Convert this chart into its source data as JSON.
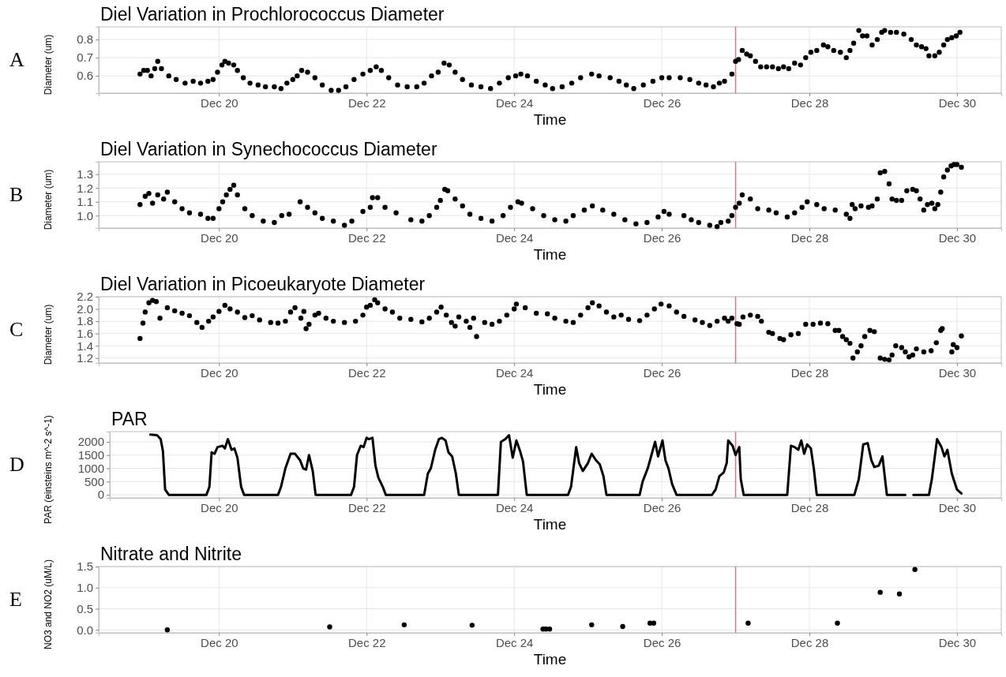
{
  "chart_data": [
    {
      "type": "scatter",
      "title": "Diel Variation in Prochlorococcus Diameter",
      "xlabel": "Time",
      "ylabel": "Diameter (um)",
      "annotations": [
        "A"
      ],
      "marker": "circle",
      "grid": true,
      "xlim": [
        "--12-18T08:53",
        "--12-30T14:24"
      ],
      "xticks": [
        {
          "value": "--12-20",
          "label": "Dec 20"
        },
        {
          "value": "--12-22",
          "label": "Dec 22"
        },
        {
          "value": "--12-24",
          "label": "Dec 24"
        },
        {
          "value": "--12-26",
          "label": "Dec 26"
        },
        {
          "value": "--12-28",
          "label": "Dec 28"
        },
        {
          "value": "--12-30",
          "label": "Dec 30"
        }
      ],
      "ylim": [
        0.505,
        0.87
      ],
      "yticks": [
        0.6,
        0.7,
        0.8
      ],
      "ref_lines": [
        {
          "axis": "x",
          "value": "--12-27",
          "color": "#f07070"
        }
      ],
      "series": [
        {
          "color": "#000000",
          "x": [
            "--12-18T22:19",
            "--12-18T23:31",
            "--12-19T00:43",
            "--12-19T01:55",
            "--12-19T03:07",
            "--12-19T04:05",
            "--12-19T05:17",
            "--12-19T07:41",
            "--12-19T10:05",
            "--12-19T12:58",
            "--12-19T15:36",
            "--12-19T18:00",
            "--12-19T20:24",
            "--12-19T22:05",
            "--12-19T23:31",
            "--12-20T00:58",
            "--12-20T01:55",
            "--12-20T03:07",
            "--12-20T04:48",
            "--12-20T06:00",
            "--12-20T07:55",
            "--12-20T10:05",
            "--12-20T12:43",
            "--12-20T15:07",
            "--12-20T18:00",
            "--12-20T20:10",
            "--12-20T22:05",
            "--12-21T00:00",
            "--12-21T01:26",
            "--12-21T02:53",
            "--12-21T04:48",
            "--12-21T07:12",
            "--12-21T09:36",
            "--12-21T12:29",
            "--12-21T14:53",
            "--12-21T17:17",
            "--12-21T19:55",
            "--12-21T22:48",
            "--12-22T01:12",
            "--12-22T03:07",
            "--12-22T04:48",
            "--12-22T07:12",
            "--12-22T10:05",
            "--12-22T13:12",
            "--12-22T16:19",
            "--12-22T18:43",
            "--12-22T21:07",
            "--12-22T23:17",
            "--12-23T01:12",
            "--12-23T02:53",
            "--12-23T04:48",
            "--12-23T07:12",
            "--12-23T10:05",
            "--12-23T13:12",
            "--12-23T16:19",
            "--12-23T19:12",
            "--12-23T22:05",
            "--12-24T00:29",
            "--12-24T02:10",
            "--12-24T04:19",
            "--12-24T07:12",
            "--12-24T10:05",
            "--12-24T12:29",
            "--12-24T15:36",
            "--12-24T18:43",
            "--12-24T21:36",
            "--12-25T01:12",
            "--12-25T03:36",
            "--12-25T07:12",
            "--12-25T10:05",
            "--12-25T12:29",
            "--12-25T14:53",
            "--12-25T18:00",
            "--12-25T21:07",
            "--12-26T00:00",
            "--12-26T02:24",
            "--12-26T06:00",
            "--12-26T09:07",
            "--12-26T12:00",
            "--12-26T14:24",
            "--12-26T16:48",
            "--12-26T18:43",
            "--12-26T20:24",
            "--12-26T22:48",
            "--12-27T00:00",
            "--12-27T00:58",
            "--12-27T02:10",
            "--12-27T03:36",
            "--12-27T04:48",
            "--12-27T06:29",
            "--12-27T08:10",
            "--12-27T10:05",
            "--12-27T12:00",
            "--12-27T13:55",
            "--12-27T15:36",
            "--12-27T17:17",
            "--12-27T19:12",
            "--12-27T21:07",
            "--12-27T22:48",
            "--12-28T00:29",
            "--12-28T02:24",
            "--12-28T04:34",
            "--12-28T06:00",
            "--12-28T07:55",
            "--12-28T10:05",
            "--12-28T12:00",
            "--12-28T13:12",
            "--12-28T14:24",
            "--12-28T16:05",
            "--12-28T17:17",
            "--12-28T18:43",
            "--12-28T20:24",
            "--12-28T22:05",
            "--12-28T23:31",
            "--12-29T00:29",
            "--12-29T02:24",
            "--12-29T04:19",
            "--12-29T06:43",
            "--12-29T09:07",
            "--12-29T10:48",
            "--12-29T12:29",
            "--12-29T13:55",
            "--12-29T14:53",
            "--12-29T16:48",
            "--12-29T18:14",
            "--12-29T19:41",
            "--12-29T20:53",
            "--12-29T22:19",
            "--12-29T23:46",
            "--12-30T00:58"
          ],
          "values": [
            0.61,
            0.63,
            0.63,
            0.6,
            0.64,
            0.68,
            0.64,
            0.6,
            0.58,
            0.56,
            0.57,
            0.56,
            0.57,
            0.58,
            0.62,
            0.66,
            0.68,
            0.67,
            0.66,
            0.63,
            0.59,
            0.56,
            0.55,
            0.54,
            0.54,
            0.53,
            0.56,
            0.58,
            0.6,
            0.63,
            0.62,
            0.59,
            0.55,
            0.52,
            0.52,
            0.54,
            0.58,
            0.61,
            0.63,
            0.65,
            0.63,
            0.59,
            0.55,
            0.54,
            0.54,
            0.56,
            0.6,
            0.62,
            0.67,
            0.66,
            0.62,
            0.58,
            0.55,
            0.54,
            0.53,
            0.56,
            0.59,
            0.6,
            0.61,
            0.6,
            0.57,
            0.55,
            0.53,
            0.54,
            0.56,
            0.59,
            0.61,
            0.6,
            0.59,
            0.57,
            0.55,
            0.53,
            0.55,
            0.57,
            0.59,
            0.59,
            0.59,
            0.58,
            0.56,
            0.55,
            0.54,
            0.56,
            0.57,
            0.61,
            0.68,
            0.69,
            0.74,
            0.72,
            0.71,
            0.68,
            0.65,
            0.65,
            0.65,
            0.64,
            0.65,
            0.64,
            0.67,
            0.66,
            0.7,
            0.73,
            0.74,
            0.77,
            0.76,
            0.74,
            0.73,
            0.7,
            0.74,
            0.78,
            0.85,
            0.82,
            0.82,
            0.77,
            0.8,
            0.84,
            0.85,
            0.84,
            0.84,
            0.83,
            0.8,
            0.77,
            0.76,
            0.75,
            0.71,
            0.71,
            0.73,
            0.77,
            0.8,
            0.81,
            0.82,
            0.84
          ]
        }
      ]
    },
    {
      "type": "scatter",
      "title": "Diel Variation in Synechococcus Diameter",
      "xlabel": "Time",
      "ylabel": "Diameter (um)",
      "annotations": [
        "B"
      ],
      "marker": "circle",
      "grid": true,
      "xlim": [
        "--12-18T08:53",
        "--12-30T14:24"
      ],
      "xticks": [
        {
          "value": "--12-20",
          "label": "Dec 20"
        },
        {
          "value": "--12-22",
          "label": "Dec 22"
        },
        {
          "value": "--12-24",
          "label": "Dec 24"
        },
        {
          "value": "--12-26",
          "label": "Dec 26"
        },
        {
          "value": "--12-28",
          "label": "Dec 28"
        },
        {
          "value": "--12-30",
          "label": "Dec 30"
        }
      ],
      "ylim": [
        0.91,
        1.39
      ],
      "yticks": [
        {
          "value": 1,
          "label": "1.0"
        },
        1.1,
        1.2,
        1.3
      ],
      "ref_lines": [
        {
          "axis": "x",
          "value": "--12-27",
          "color": "#f07070"
        }
      ],
      "series": [
        {
          "color": "#000000",
          "x": [
            "--12-18T22:19",
            "--12-19T00:00",
            "--12-19T01:12",
            "--12-19T02:24",
            "--12-19T04:05",
            "--12-19T06:00",
            "--12-19T07:12",
            "--12-19T09:36",
            "--12-19T12:00",
            "--12-19T14:24",
            "--12-19T18:00",
            "--12-19T20:24",
            "--12-19T22:05",
            "--12-20T00:00",
            "--12-20T01:12",
            "--12-20T02:24",
            "--12-20T03:36",
            "--12-20T04:48",
            "--12-20T06:00",
            "--12-20T08:24",
            "--12-20T10:48",
            "--12-20T14:24",
            "--12-20T18:00",
            "--12-20T20:24",
            "--12-20T22:48",
            "--12-21T02:24",
            "--12-21T04:48",
            "--12-21T07:12",
            "--12-21T09:36",
            "--12-21T13:12",
            "--12-21T16:48",
            "--12-21T19:12",
            "--12-21T22:48",
            "--12-22T01:12",
            "--12-22T01:55",
            "--12-22T03:36",
            "--12-22T06:00",
            "--12-22T09:36",
            "--12-22T14:24",
            "--12-22T18:00",
            "--12-22T20:24",
            "--12-22T22:48",
            "--12-23T00:00",
            "--12-23T01:26",
            "--12-23T02:24",
            "--12-23T04:48",
            "--12-23T07:12",
            "--12-23T09:36",
            "--12-23T13:12",
            "--12-23T16:48",
            "--12-23T20:24",
            "--12-23T22:48",
            "--12-24T01:12",
            "--12-24T02:24",
            "--12-24T06:00",
            "--12-24T09:36",
            "--12-24T13:12",
            "--12-24T16:48",
            "--12-24T19:12",
            "--12-24T22:48",
            "--12-25T01:26",
            "--12-25T04:48",
            "--12-25T08:24",
            "--12-25T12:00",
            "--12-25T15:36",
            "--12-25T19:12",
            "--12-25T22:48",
            "--12-26T00:43",
            "--12-26T02:24",
            "--12-26T07:12",
            "--12-26T09:36",
            "--12-26T12:00",
            "--12-26T15:36",
            "--12-26T18:00",
            "--12-26T19:12",
            "--12-26T21:36",
            "--12-26T22:48",
            "--12-27T00:00",
            "--12-27T01:12",
            "--12-27T02:10",
            "--12-27T04:48",
            "--12-27T07:12",
            "--12-27T10:48",
            "--12-27T13:12",
            "--12-27T16:48",
            "--12-27T19:12",
            "--12-27T21:36",
            "--12-27T23:17",
            "--12-28T02:24",
            "--12-28T04:48",
            "--12-28T08:24",
            "--12-28T12:00",
            "--12-28T13:12",
            "--12-28T13:55",
            "--12-28T14:53",
            "--12-28T16:48",
            "--12-28T19:12",
            "--12-28T20:24",
            "--12-28T22:05",
            "--12-28T23:02",
            "--12-29T00:29",
            "--12-29T01:55",
            "--12-29T02:53",
            "--12-29T04:19",
            "--12-29T06:00",
            "--12-29T07:41",
            "--12-29T09:36",
            "--12-29T10:48",
            "--12-29T12:00",
            "--12-29T13:12",
            "--12-29T14:24",
            "--12-29T15:50",
            "--12-29T16:48",
            "--12-29T17:46",
            "--12-29T18:43",
            "--12-29T19:41",
            "--12-29T20:53",
            "--12-29T22:05",
            "--12-29T23:02",
            "--12-30T00:00",
            "--12-30T01:26"
          ],
          "values": [
            1.08,
            1.14,
            1.16,
            1.09,
            1.15,
            1.12,
            1.17,
            1.1,
            1.05,
            1.02,
            1.01,
            0.98,
            0.98,
            1.05,
            1.1,
            1.15,
            1.19,
            1.22,
            1.15,
            1.05,
            1.0,
            0.96,
            0.95,
            1.0,
            1.01,
            1.1,
            1.06,
            1.02,
            0.98,
            0.96,
            0.93,
            0.96,
            1.03,
            1.06,
            1.13,
            1.13,
            1.06,
            1.02,
            0.97,
            0.96,
            1.0,
            1.06,
            1.11,
            1.19,
            1.18,
            1.12,
            1.07,
            1.01,
            0.98,
            0.96,
            1.0,
            1.06,
            1.1,
            1.09,
            1.05,
            1.0,
            0.97,
            0.96,
            1.0,
            1.04,
            1.07,
            1.04,
            1.01,
            0.97,
            0.94,
            0.95,
            0.99,
            1.03,
            1.01,
            1.0,
            0.97,
            0.95,
            0.93,
            0.92,
            0.95,
            0.96,
            1.0,
            1.06,
            1.09,
            1.15,
            1.12,
            1.05,
            1.04,
            1.02,
            0.99,
            1.02,
            1.06,
            1.1,
            1.08,
            1.05,
            1.04,
            1.01,
            0.98,
            1.08,
            1.05,
            1.07,
            1.06,
            1.07,
            1.12,
            1.31,
            1.32,
            1.23,
            1.12,
            1.11,
            1.11,
            1.18,
            1.19,
            1.18,
            1.12,
            1.04,
            1.08,
            1.09,
            1.05,
            1.08,
            1.17,
            1.28,
            1.33,
            1.36,
            1.37,
            1.37,
            1.35
          ]
        }
      ]
    },
    {
      "type": "scatter",
      "title": "Diel Variation in Picoeukaryote Diameter",
      "xlabel": "Time",
      "ylabel": "Diameter (um)",
      "annotations": [
        "C"
      ],
      "marker": "circle",
      "grid": true,
      "xlim": [
        "--12-18T08:53",
        "--12-30T14:24"
      ],
      "xticks": [
        {
          "value": "--12-20",
          "label": "Dec 20"
        },
        {
          "value": "--12-22",
          "label": "Dec 22"
        },
        {
          "value": "--12-24",
          "label": "Dec 24"
        },
        {
          "value": "--12-26",
          "label": "Dec 26"
        },
        {
          "value": "--12-28",
          "label": "Dec 28"
        },
        {
          "value": "--12-30",
          "label": "Dec 30"
        }
      ],
      "ylim": [
        1.12,
        2.2
      ],
      "yticks": [
        1.2,
        1.4,
        1.6,
        1.8,
        {
          "value": 2,
          "label": "2.0"
        },
        2.2
      ],
      "ref_lines": [
        {
          "axis": "x",
          "value": "--12-27",
          "color": "#f07070"
        }
      ],
      "series": [
        {
          "color": "#000000",
          "x": [
            "--12-18T22:19",
            "--12-18T23:17",
            "--12-19T00:00",
            "--12-19T01:12",
            "--12-19T02:24",
            "--12-19T03:36",
            "--12-19T04:48",
            "--12-19T07:12",
            "--12-19T09:36",
            "--12-19T12:00",
            "--12-19T14:24",
            "--12-19T16:48",
            "--12-19T18:29",
            "--12-19T20:38",
            "--12-19T22:05",
            "--12-20T00:00",
            "--12-20T01:55",
            "--12-20T03:36",
            "--12-20T06:00",
            "--12-20T08:24",
            "--12-20T10:48",
            "--12-20T13:12",
            "--12-20T16:48",
            "--12-20T19:12",
            "--12-20T21:36",
            "--12-20T23:17",
            "--12-21T00:43",
            "--12-21T02:38",
            "--12-21T03:36",
            "--12-21T04:19",
            "--12-21T05:17",
            "--12-21T07:12",
            "--12-21T08:24",
            "--12-21T10:48",
            "--12-21T13:12",
            "--12-21T16:48",
            "--12-21T20:24",
            "--12-21T22:48",
            "--12-22T00:00",
            "--12-22T01:12",
            "--12-22T02:38",
            "--12-22T03:36",
            "--12-22T06:00",
            "--12-22T08:24",
            "--12-22T10:48",
            "--12-22T14:24",
            "--12-22T18:00",
            "--12-22T20:24",
            "--12-22T22:48",
            "--12-23T00:14",
            "--12-23T01:55",
            "--12-23T03:36",
            "--12-23T04:48",
            "--12-23T06:00",
            "--12-23T08:24",
            "--12-23T09:36",
            "--12-23T10:48",
            "--12-23T11:46",
            "--12-23T14:24",
            "--12-23T16:48",
            "--12-23T19:12",
            "--12-23T21:36",
            "--12-24T00:00",
            "--12-24T00:43",
            "--12-24T03:36",
            "--12-24T07:12",
            "--12-24T10:48",
            "--12-24T13:12",
            "--12-24T16:48",
            "--12-24T19:12",
            "--12-24T21:36",
            "--12-25T00:00",
            "--12-25T01:26",
            "--12-25T03:36",
            "--12-25T06:00",
            "--12-25T08:24",
            "--12-25T10:48",
            "--12-25T13:12",
            "--12-25T16:48",
            "--12-25T19:12",
            "--12-25T21:36",
            "--12-25T23:46",
            "--12-26T02:24",
            "--12-26T04:48",
            "--12-26T07:12",
            "--12-26T10:48",
            "--12-26T13:12",
            "--12-26T15:36",
            "--12-26T18:00",
            "--12-26T20:24",
            "--12-26T21:36",
            "--12-26T22:48",
            "--12-27T00:29",
            "--12-27T01:12",
            "--12-27T02:24",
            "--12-27T04:48",
            "--12-27T07:12",
            "--12-27T08:24",
            "--12-27T10:48",
            "--12-27T12:00",
            "--12-27T14:24",
            "--12-27T15:36",
            "--12-27T18:00",
            "--12-27T20:24",
            "--12-27T22:48",
            "--12-28T01:12",
            "--12-28T03:36",
            "--12-28T06:00",
            "--12-28T08:24",
            "--12-28T09:36",
            "--12-28T10:48",
            "--12-28T12:00",
            "--12-28T13:12",
            "--12-28T14:10",
            "--12-28T15:36",
            "--12-28T16:48",
            "--12-28T18:00",
            "--12-28T19:41",
            "--12-28T21:07",
            "--12-28T23:02",
            "--12-29T00:29",
            "--12-29T01:55",
            "--12-29T02:53",
            "--12-29T04:05",
            "--12-29T06:00",
            "--12-29T07:12",
            "--12-29T08:24",
            "--12-29T09:36",
            "--12-29T10:48",
            "--12-29T13:12",
            "--12-29T15:36",
            "--12-29T17:17",
            "--12-29T18:43",
            "--12-29T19:12",
            "--12-29T22:19",
            "--12-29T22:48",
            "--12-30T00:00",
            "--12-30T01:26"
          ],
          "values": [
            1.52,
            1.77,
            1.95,
            2.1,
            2.14,
            2.12,
            1.85,
            2.02,
            1.97,
            1.93,
            1.89,
            1.78,
            1.7,
            1.8,
            1.87,
            1.96,
            2.06,
            2.0,
            1.95,
            1.86,
            1.89,
            1.82,
            1.78,
            1.77,
            1.8,
            1.95,
            2.02,
            1.85,
            1.96,
            1.68,
            1.75,
            1.9,
            1.93,
            1.85,
            1.8,
            1.78,
            1.8,
            1.9,
            2.03,
            2.06,
            2.15,
            2.1,
            2.0,
            1.95,
            1.85,
            1.83,
            1.79,
            1.85,
            1.95,
            2.03,
            1.9,
            1.78,
            1.72,
            1.87,
            1.8,
            1.7,
            1.85,
            1.55,
            1.78,
            1.75,
            1.8,
            1.9,
            2.0,
            2.08,
            2.02,
            1.93,
            1.92,
            1.85,
            1.8,
            1.78,
            1.9,
            2.02,
            2.1,
            2.05,
            1.95,
            1.87,
            1.9,
            1.83,
            1.81,
            1.9,
            2.0,
            2.08,
            2.05,
            1.95,
            1.88,
            1.82,
            1.78,
            1.73,
            1.8,
            1.85,
            1.8,
            1.85,
            1.76,
            1.75,
            1.87,
            1.9,
            1.88,
            1.8,
            1.62,
            1.6,
            1.52,
            1.5,
            1.58,
            1.6,
            1.75,
            1.75,
            1.77,
            1.76,
            1.65,
            1.65,
            1.55,
            1.5,
            1.44,
            1.2,
            1.3,
            1.4,
            1.55,
            1.65,
            1.63,
            1.2,
            1.18,
            1.17,
            1.25,
            1.4,
            1.37,
            1.3,
            1.22,
            1.25,
            1.35,
            1.3,
            1.32,
            1.45,
            1.65,
            1.68,
            1.3,
            1.42,
            1.37,
            1.56
          ]
        }
      ]
    },
    {
      "type": "line",
      "title": "PAR",
      "xlabel": "Time",
      "ylabel": "PAR (einsteins m^-2 s^-1)",
      "annotations": [
        "D"
      ],
      "line_style": "solid",
      "grid": true,
      "xlim": [
        "--12-18T12:29",
        "--12-30T14:24"
      ],
      "xticks": [
        {
          "value": "--12-20",
          "label": "Dec 20"
        },
        {
          "value": "--12-22",
          "label": "Dec 22"
        },
        {
          "value": "--12-24",
          "label": "Dec 24"
        },
        {
          "value": "--12-26",
          "label": "Dec 26"
        },
        {
          "value": "--12-28",
          "label": "Dec 28"
        },
        {
          "value": "--12-30",
          "label": "Dec 30"
        }
      ],
      "ylim": [
        -115,
        2385
      ],
      "yticks": [
        0,
        500,
        1000,
        1500,
        2000
      ],
      "ref_lines": [
        {
          "axis": "x",
          "value": "--12-27",
          "color": "#f07070"
        }
      ],
      "series": [
        {
          "color": "#000000",
          "x": [
            "--12-19T01:41",
            "--12-19T03:50",
            "--12-19T05:02",
            "--12-19T05:46",
            "--12-19T06:29",
            "--12-19T07:41",
            "--12-19T19:55",
            "--12-19T20:53",
            "--12-19T21:36",
            "--12-19T22:34",
            "--12-19T23:31",
            "--12-20T01:12",
            "--12-20T01:55",
            "--12-20T02:53",
            "--12-20T04:05",
            "--12-20T05:02",
            "--12-20T06:00",
            "--12-20T07:12",
            "--12-20T08:10",
            "--12-20T19:12",
            "--12-20T20:10",
            "--12-20T21:36",
            "--12-20T23:17",
            "--12-21T00:43",
            "--12-21T02:24",
            "--12-21T03:22",
            "--12-21T04:19",
            "--12-21T05:17",
            "--12-21T06:29",
            "--12-21T07:26",
            "--12-21T18:58",
            "--12-21T19:55",
            "--12-21T20:53",
            "--12-21T22:05",
            "--12-21T23:02",
            "--12-22T00:00",
            "--12-22T00:43",
            "--12-22T01:55",
            "--12-22T02:53",
            "--12-22T03:50",
            "--12-22T05:17",
            "--12-22T06:14",
            "--12-22T18:43",
            "--12-22T19:55",
            "--12-22T20:53",
            "--12-22T22:19",
            "--12-22T23:31",
            "--12-23T00:29",
            "--12-23T01:41",
            "--12-23T02:38",
            "--12-23T03:50",
            "--12-23T05:02",
            "--12-23T06:00",
            "--12-23T18:43",
            "--12-23T19:41",
            "--12-23T21:07",
            "--12-23T22:19",
            "--12-23T23:31",
            "--12-24T00:43",
            "--12-24T01:55",
            "--12-24T02:53",
            "--12-24T04:05",
            "--12-24T17:31",
            "--12-24T18:29",
            "--12-24T20:10",
            "--12-24T21:07",
            "--12-24T22:19",
            "--12-25T00:00",
            "--12-25T01:12",
            "--12-25T02:38",
            "--12-25T03:50",
            "--12-25T05:02",
            "--12-25T06:00",
            "--12-25T16:48",
            "--12-25T17:46",
            "--12-25T19:26",
            "--12-25T20:38",
            "--12-25T21:50",
            "--12-25T22:48",
            "--12-26T00:14",
            "--12-26T01:12",
            "--12-26T02:10",
            "--12-26T03:22",
            "--12-26T04:48",
            "--12-26T16:19",
            "--12-26T17:31",
            "--12-26T18:43",
            "--12-26T20:10",
            "--12-26T21:07",
            "--12-26T21:36",
            "--12-26T23:02",
            "--12-27T00:00",
            "--12-27T01:12",
            "--12-27T01:41",
            "--12-27T02:38",
            "--12-27T16:48",
            "--12-27T18:00",
            "--12-27T19:12",
            "--12-27T20:24",
            "--12-27T21:22",
            "--12-27T22:19",
            "--12-27T23:17",
            "--12-28T00:29",
            "--12-28T01:26",
            "--12-28T02:24",
            "--12-28T14:38",
            "--12-28T16:05",
            "--12-28T17:31",
            "--12-28T18:58",
            "--12-28T20:10",
            "--12-28T21:07",
            "--12-28T22:34",
            "--12-28T23:46",
            "--12-29T01:12",
            "--12-29T07:12",
            "--12-29T08:24",
            "--12-29T09:50",
            "--12-29T14:53",
            "--12-29T15:50",
            "--12-29T17:31",
            "--12-29T18:58",
            "--12-29T19:55",
            "--12-29T20:53",
            "--12-29T22:19",
            "--12-30T00:00",
            "--12-30T01:26"
          ],
          "values": [
            2270,
            2250,
            2100,
            1650,
            200,
            0,
            0,
            300,
            1600,
            1550,
            1800,
            1850,
            1750,
            2100,
            1700,
            1750,
            1400,
            300,
            0,
            0,
            300,
            1000,
            1550,
            1550,
            1300,
            1000,
            950,
            1500,
            900,
            0,
            0,
            300,
            1500,
            1850,
            1800,
            2150,
            2100,
            2150,
            1100,
            650,
            300,
            0,
            0,
            800,
            1000,
            1700,
            2100,
            2150,
            2050,
            1600,
            1450,
            800,
            0,
            0,
            2000,
            2100,
            2250,
            1400,
            2050,
            1650,
            1250,
            0,
            0,
            300,
            1800,
            1200,
            900,
            1200,
            1550,
            1300,
            1150,
            700,
            0,
            0,
            500,
            1000,
            1500,
            2000,
            1450,
            2050,
            1300,
            1000,
            400,
            0,
            0,
            200,
            700,
            850,
            1200,
            2050,
            1850,
            1500,
            1800,
            600,
            0,
            0,
            1850,
            1800,
            1700,
            2050,
            1550,
            1900,
            1750,
            1000,
            0,
            0,
            600,
            1900,
            1950,
            1300,
            1050,
            1100,
            1450,
            0,
            0,
            null,
            0,
            0,
            600,
            2100,
            1800,
            1450,
            1700,
            800,
            200,
            50
          ]
        }
      ]
    },
    {
      "type": "scatter",
      "title": "Nitrate and Nitrite",
      "xlabel": "Time",
      "ylabel": "NO3 and NO2 (uM/L)",
      "annotations": [
        "E"
      ],
      "marker": "circle",
      "grid": true,
      "xlim": [
        "--12-18T08:53",
        "--12-30T14:24"
      ],
      "xticks": [
        {
          "value": "--12-20",
          "label": "Dec 20"
        },
        {
          "value": "--12-22",
          "label": "Dec 22"
        },
        {
          "value": "--12-24",
          "label": "Dec 24"
        },
        {
          "value": "--12-26",
          "label": "Dec 26"
        },
        {
          "value": "--12-28",
          "label": "Dec 28"
        },
        {
          "value": "--12-30",
          "label": "Dec 30"
        }
      ],
      "ylim": [
        -0.07,
        1.5
      ],
      "yticks": [
        {
          "value": 0,
          "label": "0.0"
        },
        0.5,
        {
          "value": 1,
          "label": "1.0"
        },
        1.5
      ],
      "ref_lines": [
        {
          "axis": "x",
          "value": "--12-27",
          "color": "#f07070"
        }
      ],
      "series": [
        {
          "color": "#000000",
          "x": [
            "--12-19T07:12",
            "--12-21T12:00",
            "--12-22T12:14",
            "--12-23T10:19",
            "--12-24T09:22",
            "--12-24T10:19",
            "--12-24T11:31",
            "--12-25T01:12",
            "--12-25T11:17",
            "--12-25T20:10",
            "--12-25T21:22",
            "--12-27T04:05",
            "--12-28T09:07",
            "--12-28T23:02",
            "--12-29T05:17",
            "--12-29T10:19"
          ],
          "values": [
            0.0,
            0.07,
            0.12,
            0.11,
            0.02,
            0.02,
            0.02,
            0.12,
            0.08,
            0.16,
            0.16,
            0.16,
            0.16,
            0.89,
            0.85,
            1.43
          ]
        }
      ]
    }
  ]
}
